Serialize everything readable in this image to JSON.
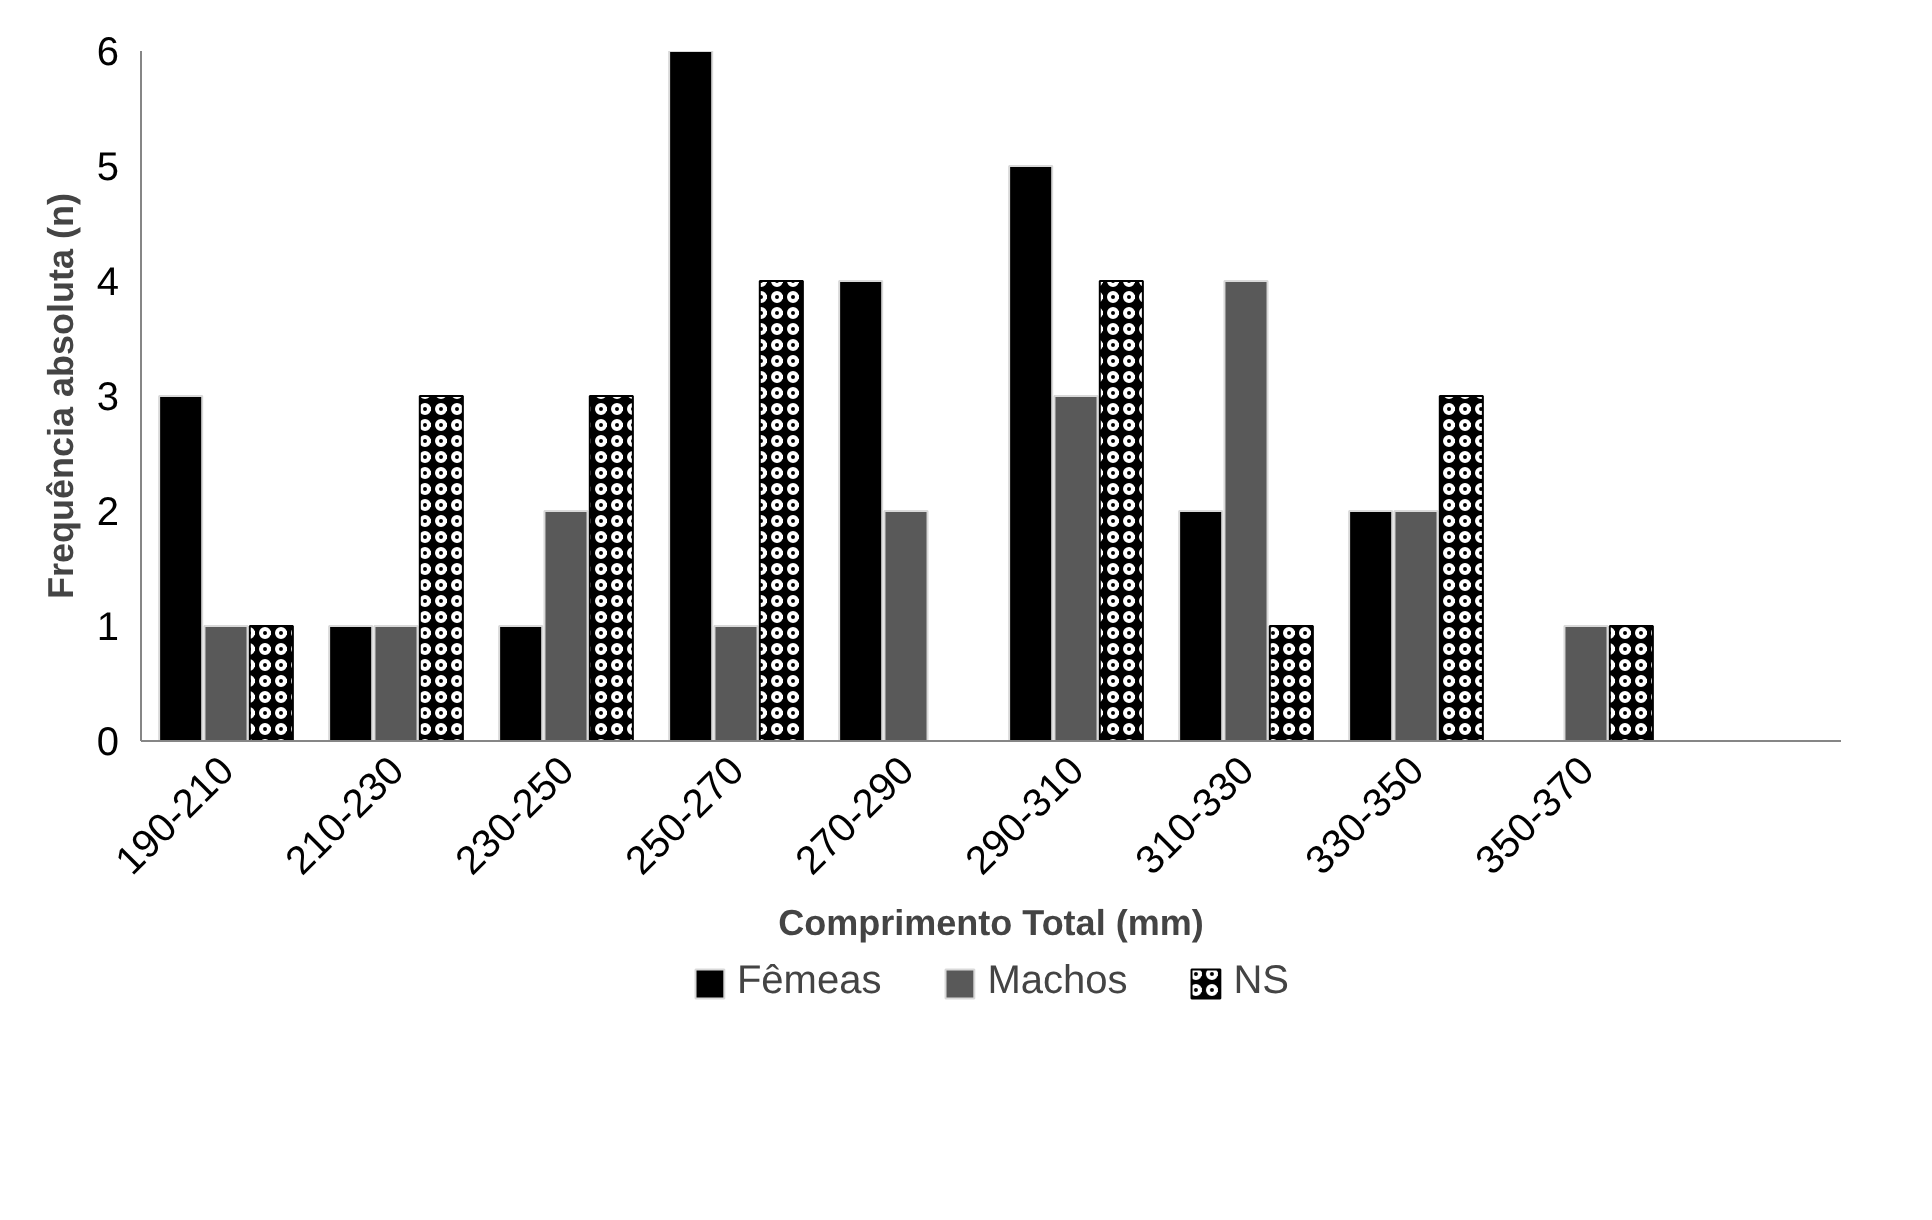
{
  "chart_data": {
    "type": "bar",
    "xlabel": "Comprimento Total (mm)",
    "ylabel": "Frequência absoluta (n)",
    "categories": [
      "190-210",
      "210-230",
      "230-250",
      "250-270",
      "270-290",
      "290-310",
      "310-330",
      "330-350",
      "350-370",
      null
    ],
    "series": [
      {
        "name": "Fêmeas",
        "color": "#000000",
        "values": [
          3,
          1,
          1,
          6,
          4,
          5,
          2,
          2,
          null,
          null
        ]
      },
      {
        "name": "Machos",
        "color": "#595959",
        "values": [
          1,
          1,
          2,
          1,
          2,
          3,
          4,
          2,
          1,
          null
        ]
      },
      {
        "name": "NS",
        "color": "#000000",
        "values": [
          1,
          3,
          3,
          4,
          0,
          4,
          1,
          3,
          1,
          null
        ]
      }
    ],
    "ylim": [
      0,
      6
    ],
    "yticks": [
      0,
      1,
      2,
      3,
      4,
      5,
      6
    ],
    "grid": false,
    "legend": "bottom"
  }
}
